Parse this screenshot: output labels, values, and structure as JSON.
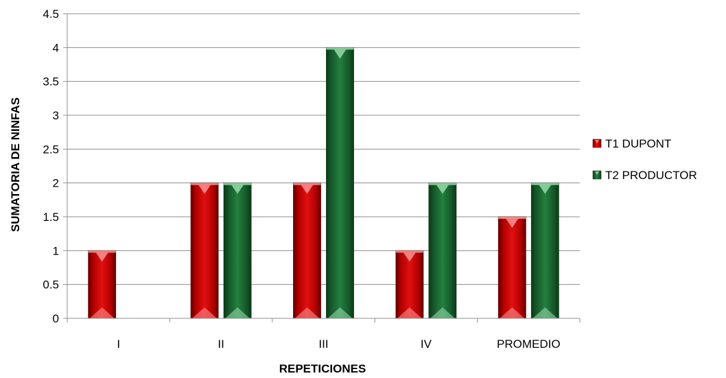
{
  "chart_data": {
    "type": "bar",
    "categories": [
      "I",
      "II",
      "III",
      "IV",
      "PROMEDIO"
    ],
    "series": [
      {
        "name": "T1 DUPONT",
        "values": [
          1,
          2,
          2,
          1,
          1.5
        ],
        "color": "#c00000"
      },
      {
        "name": "T2 PRODUCTOR",
        "values": [
          0,
          2,
          4,
          2,
          2
        ],
        "color": "#1e6b32"
      }
    ],
    "title": "",
    "xlabel": "REPETICIONES",
    "ylabel": "SUMATORIA DE NINFAS",
    "ylim": [
      0,
      4.5
    ],
    "yticks": [
      "0",
      "0.5",
      "1",
      "1.5",
      "2",
      "2.5",
      "3",
      "3.5",
      "4",
      "4.5"
    ],
    "grid": true,
    "legend_position": "right"
  }
}
